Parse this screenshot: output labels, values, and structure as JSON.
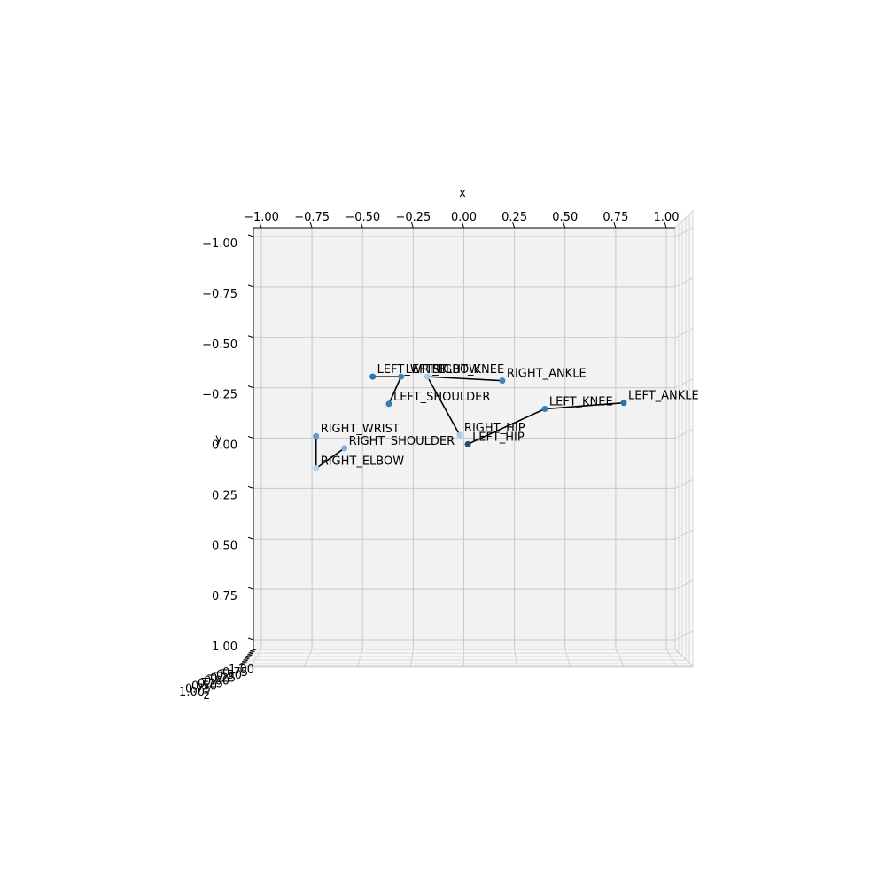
{
  "chart_data": {
    "type": "scatter",
    "projection": "3d-pose-skeleton",
    "xlabel": "x",
    "ylabel": "y",
    "zlabel": "z",
    "xlim": [
      -1.0,
      1.0
    ],
    "ylim": [
      -1.0,
      1.0
    ],
    "y_inverted": true,
    "grid": true,
    "x_ticks": [
      "−1.00",
      "−0.75",
      "−0.50",
      "−0.25",
      "0.00",
      "0.25",
      "0.50",
      "0.75",
      "1.00"
    ],
    "y_ticks": [
      "−1.00",
      "−0.75",
      "−0.50",
      "−0.25",
      "0.00",
      "0.25",
      "0.50",
      "0.75",
      "1.00"
    ],
    "z_ticks": [
      "−1.00",
      "−0.75",
      "−0.50",
      "−0.25",
      "0.00",
      "0.25",
      "0.50",
      "0.75",
      "1.00"
    ],
    "points": [
      {
        "name": "LEFT_WRIST",
        "x": -0.45,
        "y": -0.305,
        "color": "#1f77b4"
      },
      {
        "name": "LEFT_ELBOW",
        "x": -0.31,
        "y": -0.305,
        "color": "#3a86be"
      },
      {
        "name": "LEFT_SHOULDER",
        "x": -0.37,
        "y": -0.17,
        "color": "#2f7fba"
      },
      {
        "name": "RIGHT_KNEE",
        "x": -0.18,
        "y": -0.305,
        "color": "#a9c8e2"
      },
      {
        "name": "RIGHT_ANKLE",
        "x": 0.19,
        "y": -0.285,
        "color": "#3a86be"
      },
      {
        "name": "LEFT_KNEE",
        "x": 0.4,
        "y": -0.145,
        "color": "#2f7fba"
      },
      {
        "name": "LEFT_ANKLE",
        "x": 0.79,
        "y": -0.175,
        "color": "#1f77b4"
      },
      {
        "name": "LEFT_HIP",
        "x": 0.02,
        "y": 0.03,
        "color": "#1f4e79"
      },
      {
        "name": "RIGHT_HIP",
        "x": -0.02,
        "y": -0.015,
        "color": "#a9c8e2"
      },
      {
        "name": "RIGHT_WRIST",
        "x": -0.73,
        "y": -0.01,
        "color": "#5b9bd0"
      },
      {
        "name": "RIGHT_SHOULDER",
        "x": -0.59,
        "y": 0.05,
        "color": "#7fb0da"
      },
      {
        "name": "RIGHT_ELBOW",
        "x": -0.73,
        "y": 0.15,
        "color": "#b9d3ea"
      }
    ],
    "connections": [
      [
        "LEFT_WRIST",
        "LEFT_ELBOW"
      ],
      [
        "LEFT_ELBOW",
        "LEFT_SHOULDER"
      ],
      [
        "RIGHT_KNEE",
        "RIGHT_ANKLE"
      ],
      [
        "RIGHT_KNEE",
        "RIGHT_HIP"
      ],
      [
        "LEFT_HIP",
        "LEFT_KNEE"
      ],
      [
        "LEFT_KNEE",
        "LEFT_ANKLE"
      ],
      [
        "RIGHT_WRIST",
        "RIGHT_ELBOW"
      ],
      [
        "RIGHT_ELBOW",
        "RIGHT_SHOULDER"
      ]
    ]
  }
}
